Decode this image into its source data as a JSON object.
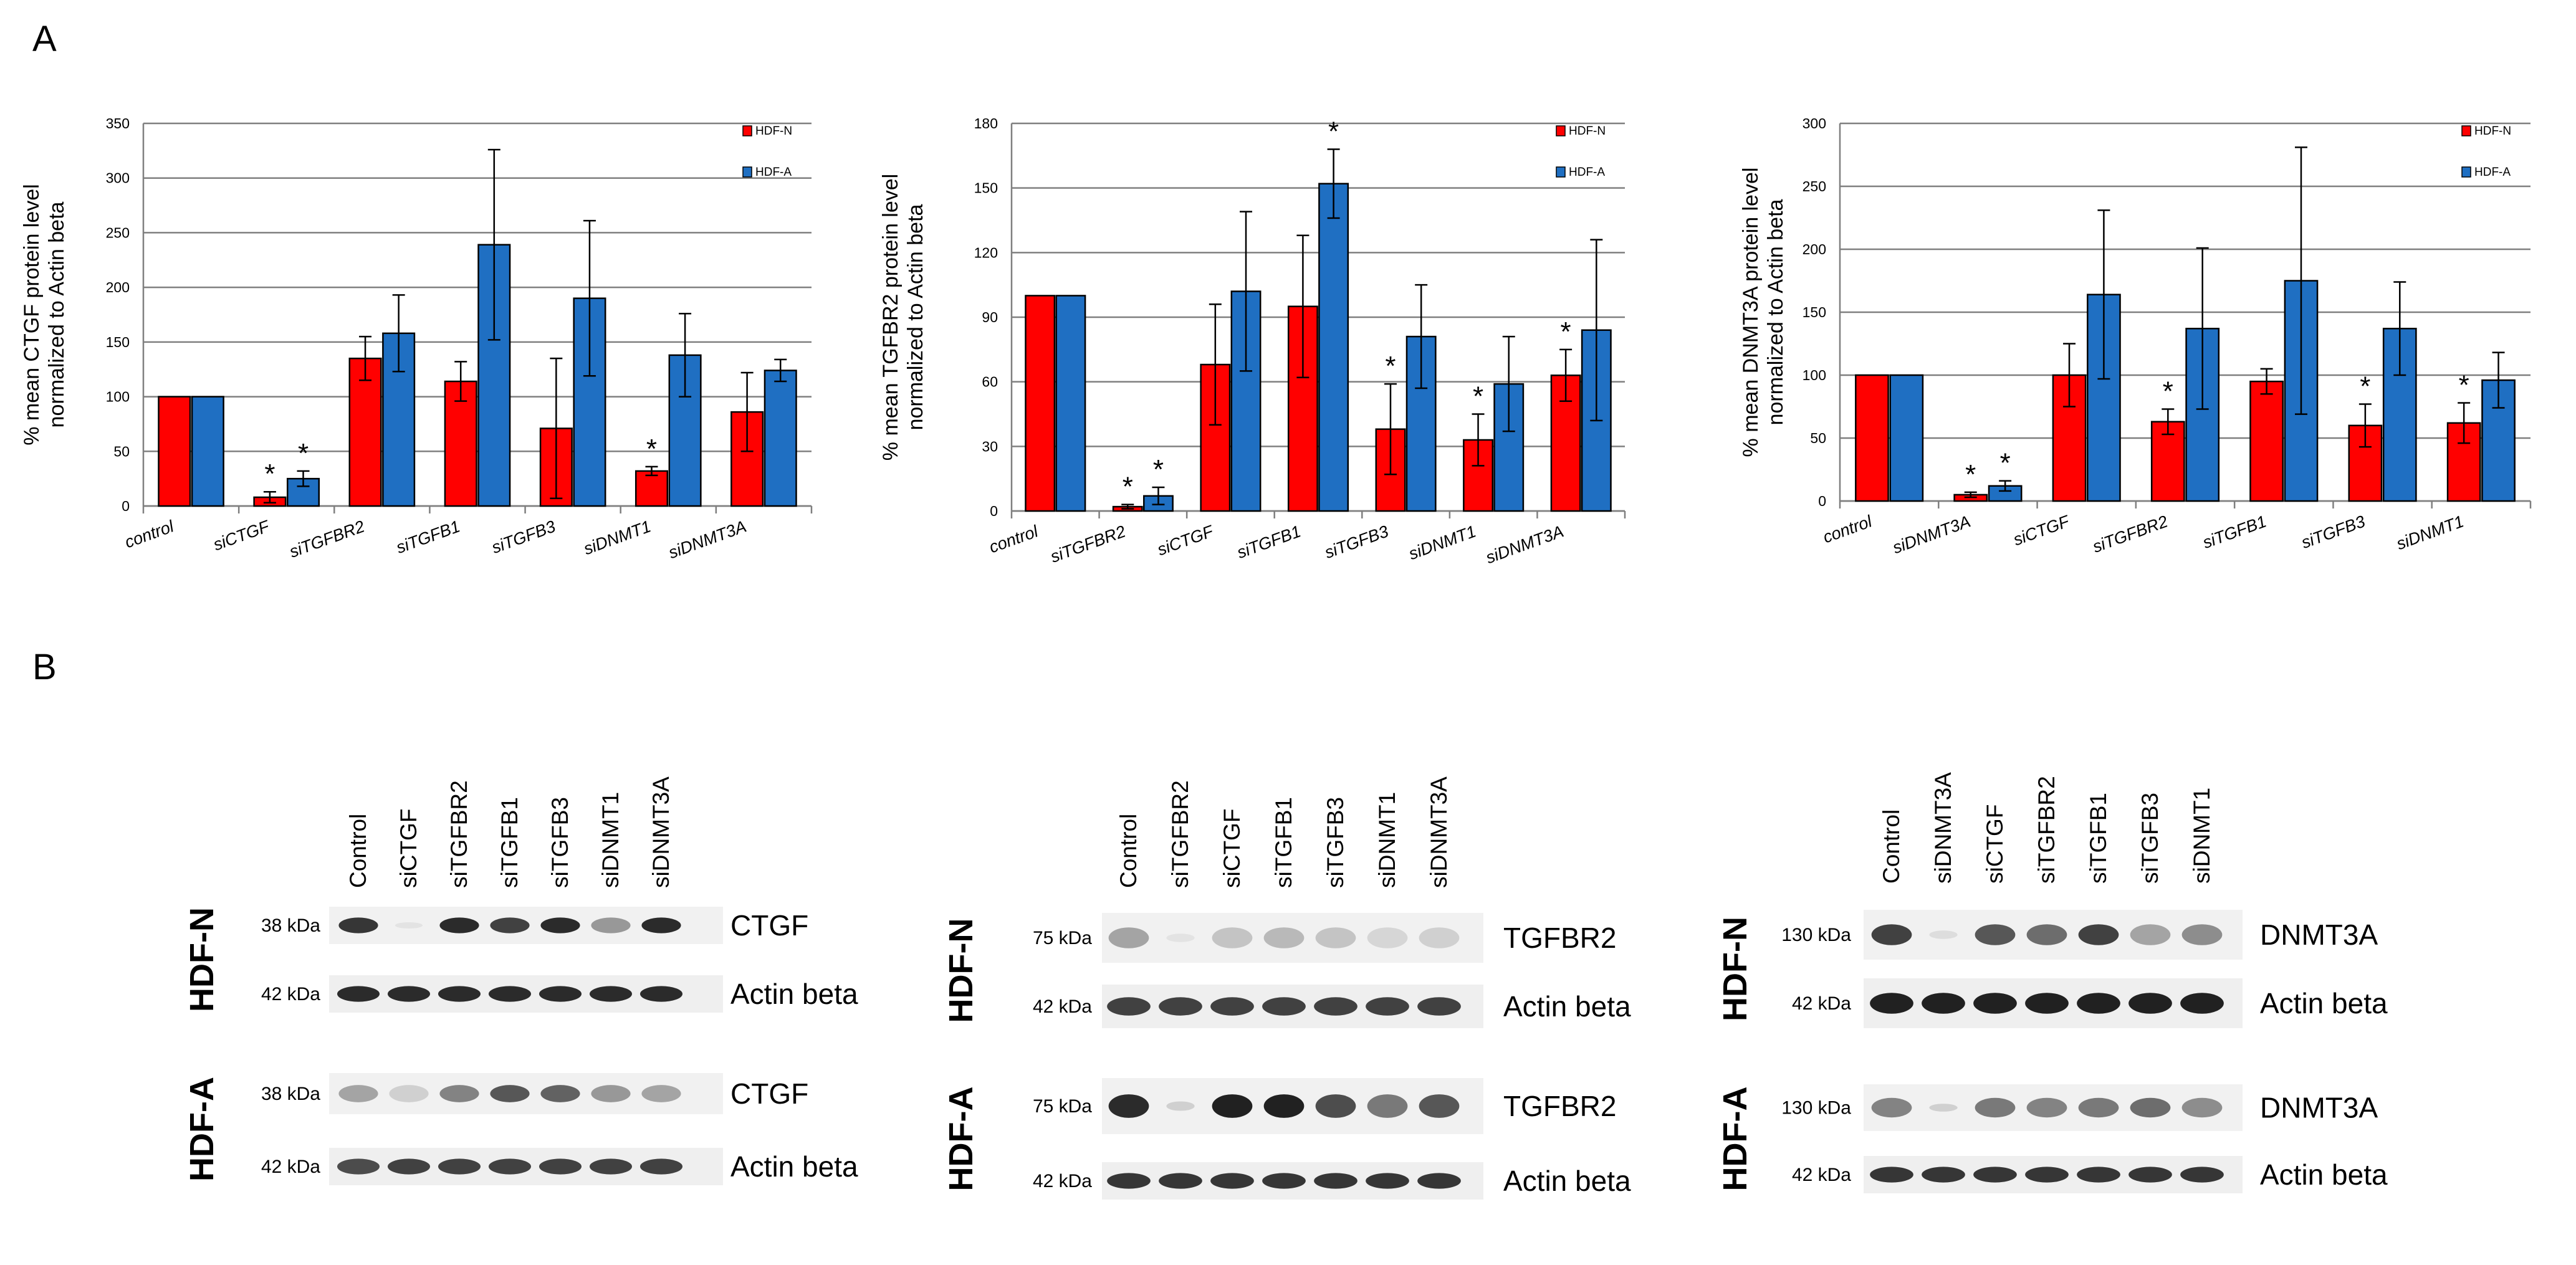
{
  "panel_labels": {
    "a": "A",
    "b": "B"
  },
  "colors": {
    "hdf_n": "#ff0000",
    "hdf_a": "#1f6fc2",
    "grid": "#7f7f7f",
    "axis": "#7f7f7f",
    "band": "#151515"
  },
  "chart_data": [
    {
      "type": "bar",
      "title": "",
      "ylabel": [
        "% mean CTGF protein level",
        "normalized to Actin beta"
      ],
      "xlabel": "",
      "ylim": [
        0,
        350
      ],
      "yticks": [
        0,
        50,
        100,
        150,
        200,
        250,
        300,
        350
      ],
      "legend": {
        "position": "top-right",
        "labels": [
          "HDF-N",
          "HDF-A"
        ]
      },
      "categories": [
        "control",
        "siCTGF",
        "siTGFBR2",
        "siTGFB1",
        "siTGFB3",
        "siDNMT1",
        "siDNMT3A"
      ],
      "series": [
        {
          "name": "HDF-N",
          "values": [
            100,
            8,
            135,
            114,
            71,
            32,
            86
          ],
          "errors": [
            0,
            5,
            20,
            18,
            64,
            4,
            36
          ]
        },
        {
          "name": "HDF-A",
          "values": [
            100,
            25,
            158,
            239,
            190,
            138,
            124
          ],
          "errors": [
            0,
            7,
            35,
            87,
            71,
            38,
            10
          ]
        }
      ],
      "significance": [
        {
          "category": 1,
          "series": 0,
          "label": "*"
        },
        {
          "category": 1,
          "series": 1,
          "label": "*"
        },
        {
          "category": 5,
          "series": 0,
          "label": "*"
        }
      ]
    },
    {
      "type": "bar",
      "title": "",
      "ylabel": [
        "% mean TGFBR2 protein level",
        "normalized to Actin beta"
      ],
      "xlabel": "",
      "ylim": [
        0,
        180
      ],
      "yticks": [
        0,
        30,
        60,
        90,
        120,
        150,
        180
      ],
      "legend": {
        "position": "top-right",
        "labels": [
          "HDF-N",
          "HDF-A"
        ]
      },
      "categories": [
        "control",
        "siTGFBR2",
        "siCTGF",
        "siTGFB1",
        "siTGFB3",
        "siDNMT1",
        "siDNMT3A"
      ],
      "series": [
        {
          "name": "HDF-N",
          "values": [
            100,
            2,
            68,
            95,
            38,
            33,
            63
          ],
          "errors": [
            0,
            1,
            28,
            33,
            21,
            12,
            12
          ]
        },
        {
          "name": "HDF-A",
          "values": [
            100,
            7,
            102,
            152,
            81,
            59,
            84
          ],
          "errors": [
            0,
            4,
            37,
            16,
            24,
            22,
            42
          ]
        }
      ],
      "significance": [
        {
          "category": 1,
          "series": 0,
          "label": "*"
        },
        {
          "category": 1,
          "series": 1,
          "label": "*"
        },
        {
          "category": 3,
          "series": 1,
          "label": "*"
        },
        {
          "category": 4,
          "series": 0,
          "label": "*"
        },
        {
          "category": 5,
          "series": 0,
          "label": "*"
        },
        {
          "category": 6,
          "series": 0,
          "label": "*"
        }
      ]
    },
    {
      "type": "bar",
      "title": "",
      "ylabel": [
        "% mean DNMT3A protein level",
        "normalized to Actin beta"
      ],
      "xlabel": "",
      "ylim": [
        0,
        300
      ],
      "yticks": [
        0,
        50,
        100,
        150,
        200,
        250,
        300
      ],
      "legend": {
        "position": "top-right",
        "labels": [
          "HDF-N",
          "HDF-A"
        ]
      },
      "categories": [
        "control",
        "siDNMT3A",
        "siCTGF",
        "siTGFBR2",
        "siTGFB1",
        "siTGFB3",
        "siDNMT1"
      ],
      "series": [
        {
          "name": "HDF-N",
          "values": [
            100,
            5,
            100,
            63,
            95,
            60,
            62
          ],
          "errors": [
            0,
            2,
            25,
            10,
            10,
            17,
            16
          ]
        },
        {
          "name": "HDF-A",
          "values": [
            100,
            12,
            164,
            137,
            175,
            137,
            96
          ],
          "errors": [
            0,
            4,
            67,
            64,
            106,
            37,
            22
          ]
        }
      ],
      "significance": [
        {
          "category": 1,
          "series": 0,
          "label": "*"
        },
        {
          "category": 1,
          "series": 1,
          "label": "*"
        },
        {
          "category": 3,
          "series": 0,
          "label": "*"
        },
        {
          "category": 5,
          "series": 0,
          "label": "*"
        },
        {
          "category": 6,
          "series": 0,
          "label": "*"
        }
      ]
    }
  ],
  "blots": [
    {
      "lanes": [
        "Control",
        "siCTGF",
        "siTGFBR2",
        "siTGFB1",
        "siTGFB3",
        "siDNMT1",
        "siDNMT3A"
      ],
      "rows": [
        {
          "cell": "HDF-N",
          "target": {
            "name": "CTGF",
            "kda": "38 kDa",
            "intensity": [
              0.85,
              0.02,
              0.9,
              0.8,
              0.9,
              0.4,
              0.9
            ]
          },
          "loading": {
            "name": "Actin beta",
            "kda": "42 kDa",
            "intensity": [
              0.9,
              0.9,
              0.9,
              0.9,
              0.9,
              0.9,
              0.9
            ]
          }
        },
        {
          "cell": "HDF-A",
          "target": {
            "name": "CTGF",
            "kda": "38 kDa",
            "intensity": [
              0.35,
              0.15,
              0.5,
              0.7,
              0.65,
              0.4,
              0.35
            ]
          },
          "loading": {
            "name": "Actin beta",
            "kda": "42 kDa",
            "intensity": [
              0.75,
              0.8,
              0.8,
              0.8,
              0.8,
              0.8,
              0.8
            ]
          }
        }
      ]
    },
    {
      "lanes": [
        "Control",
        "siTGFBR2",
        "siCTGF",
        "siTGFB1",
        "siTGFB3",
        "siDNMT1",
        "siDNMT3A"
      ],
      "rows": [
        {
          "cell": "HDF-N",
          "target": {
            "name": "TGFBR2",
            "kda": "75 kDa",
            "intensity": [
              0.35,
              0.02,
              0.2,
              0.25,
              0.2,
              0.12,
              0.15
            ]
          },
          "loading": {
            "name": "Actin beta",
            "kda": "42 kDa",
            "intensity": [
              0.8,
              0.8,
              0.8,
              0.8,
              0.8,
              0.8,
              0.8
            ]
          }
        },
        {
          "cell": "HDF-A",
          "target": {
            "name": "TGFBR2",
            "kda": "75 kDa",
            "intensity": [
              0.9,
              0.05,
              0.95,
              0.95,
              0.75,
              0.55,
              0.7
            ]
          },
          "loading": {
            "name": "Actin beta",
            "kda": "42 kDa",
            "intensity": [
              0.85,
              0.85,
              0.85,
              0.85,
              0.85,
              0.85,
              0.85
            ]
          }
        }
      ]
    },
    {
      "lanes": [
        "Control",
        "siDNMT3A",
        "siCTGF",
        "siTGFBR2",
        "siTGFB1",
        "siTGFB3",
        "siDNMT1"
      ],
      "rows": [
        {
          "cell": "HDF-N",
          "target": {
            "name": "DNMT3A",
            "kda": "130 kDa",
            "intensity": [
              0.8,
              0.03,
              0.7,
              0.6,
              0.8,
              0.35,
              0.45
            ]
          },
          "loading": {
            "name": "Actin beta",
            "kda": "42 kDa",
            "intensity": [
              0.95,
              0.95,
              0.95,
              0.95,
              0.95,
              0.95,
              0.95
            ]
          }
        },
        {
          "cell": "HDF-A",
          "target": {
            "name": "DNMT3A",
            "kda": "130 kDa",
            "intensity": [
              0.5,
              0.05,
              0.55,
              0.5,
              0.55,
              0.6,
              0.45
            ]
          },
          "loading": {
            "name": "Actin beta",
            "kda": "42 kDa",
            "intensity": [
              0.85,
              0.85,
              0.85,
              0.85,
              0.85,
              0.85,
              0.85
            ]
          }
        }
      ]
    }
  ]
}
